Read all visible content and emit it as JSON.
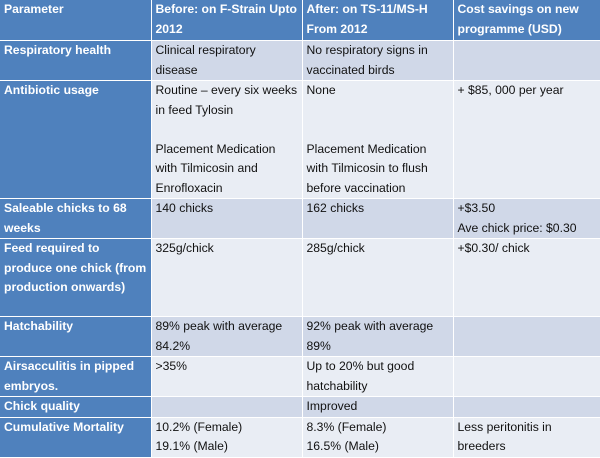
{
  "headers": [
    "Parameter",
    "Before: on F-Strain Upto 2012",
    "After: on TS-11/MS-H From 2012",
    "Cost savings on new programme (USD)"
  ],
  "rows": [
    {
      "parameter": "Respiratory health",
      "before": [
        "Clinical respiratory disease"
      ],
      "after": [
        "No respiratory signs in vaccinated birds"
      ],
      "savings": [
        ""
      ]
    },
    {
      "parameter": "Antibiotic usage",
      "before": [
        "Routine – every six weeks in feed Tylosin",
        "",
        "Placement Medication with Tilmicosin and Enrofloxacin"
      ],
      "after": [
        "None",
        "",
        "",
        "Placement Medication with Tilmicosin to flush before vaccination"
      ],
      "savings": [
        "+ $85, 000 per year"
      ]
    },
    {
      "parameter": "Saleable chicks to 68 weeks",
      "before": [
        "140 chicks"
      ],
      "after": [
        "162 chicks"
      ],
      "savings": [
        "+$3.50",
        "Ave chick price: $0.30"
      ]
    },
    {
      "parameter": "Feed required to produce one chick (from production onwards)",
      "before": [
        "325g/chick"
      ],
      "after": [
        "285g/chick"
      ],
      "savings": [
        "+$0.30/ chick"
      ]
    },
    {
      "parameter": "Hatchability",
      "before": [
        "89% peak with average 84.2%"
      ],
      "after": [
        "92% peak with average 89%"
      ],
      "savings": [
        ""
      ]
    },
    {
      "parameter": "Airsacculitis in pipped embryos.",
      "before": [
        ">35%"
      ],
      "after": [
        "Up to 20% but good hatchability"
      ],
      "savings": [
        ""
      ]
    },
    {
      "parameter": "Chick quality",
      "before": [
        ""
      ],
      "after": [
        "Improved"
      ],
      "savings": [
        ""
      ]
    },
    {
      "parameter": "Cumulative Mortality",
      "before": [
        "10.2% (Female)",
        "19.1% (Male)"
      ],
      "after": [
        "8.3% (Female)",
        "16.5% (Male)"
      ],
      "savings": [
        "Less peritonitis in breeders"
      ]
    }
  ]
}
